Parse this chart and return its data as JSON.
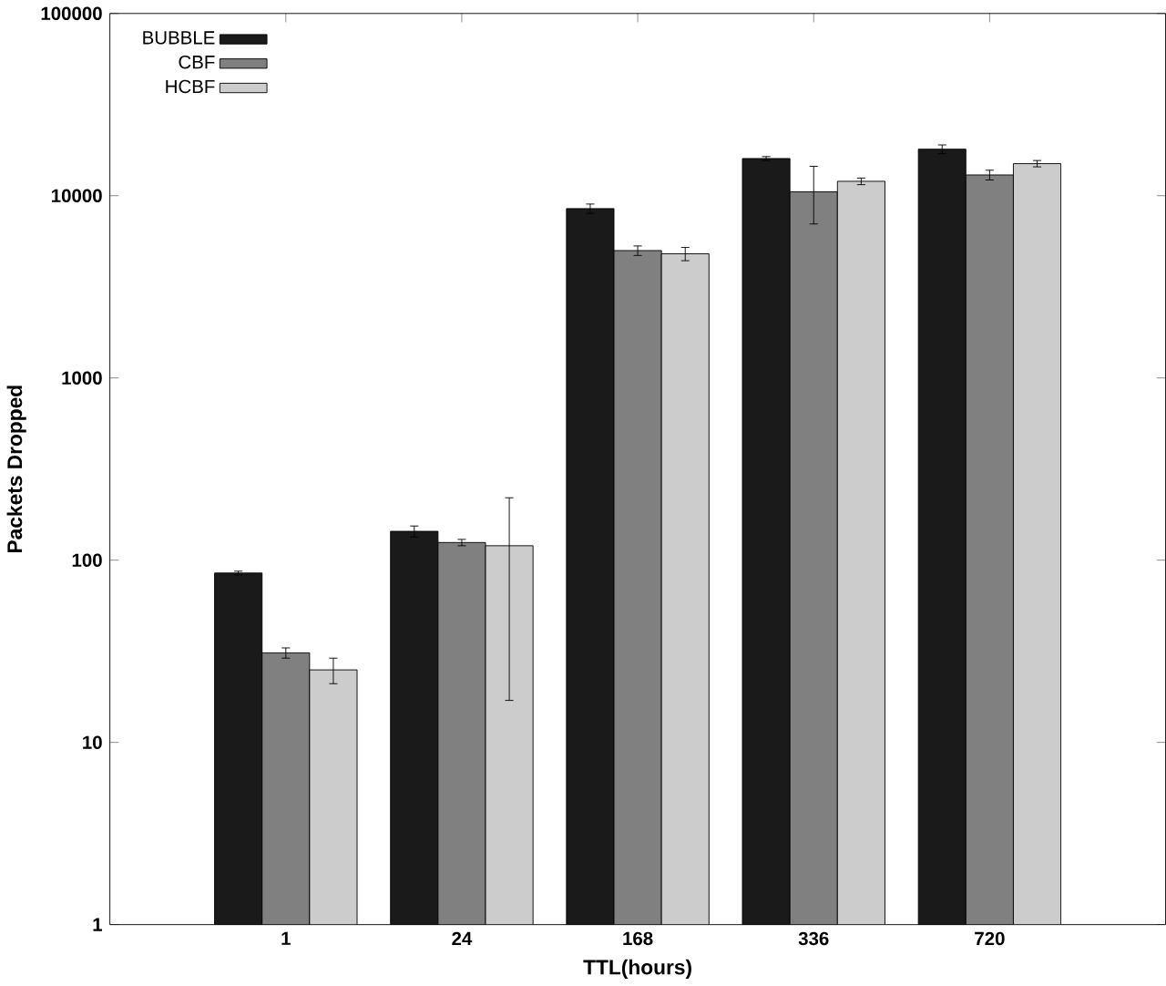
{
  "chart_data": {
    "type": "bar",
    "xlabel": "TTL(hours)",
    "ylabel": "Packets Dropped",
    "categories": [
      "1",
      "24",
      "168",
      "336",
      "720"
    ],
    "log": "y",
    "ylim": [
      1,
      100000
    ],
    "yticks": [
      1,
      10,
      100,
      1000,
      10000,
      100000
    ],
    "legend": "top left",
    "grid": false,
    "series": [
      {
        "name": "BUBBLE",
        "color": "#1a1a1a",
        "values": [
          85,
          144,
          8500,
          16000,
          18000
        ],
        "errors": [
          2,
          10,
          500,
          400,
          1000
        ]
      },
      {
        "name": "CBF",
        "color": "#808080",
        "values": [
          31,
          125,
          5000,
          10500,
          13000
        ],
        "errors": [
          2,
          5,
          300,
          [
            7000,
            14500
          ],
          800
        ]
      },
      {
        "name": "HCBF",
        "color": "#cccccc",
        "values": [
          25,
          120,
          4800,
          12000,
          15000
        ],
        "errors": [
          4,
          [
            17,
            220
          ],
          400,
          500,
          600
        ]
      }
    ]
  }
}
